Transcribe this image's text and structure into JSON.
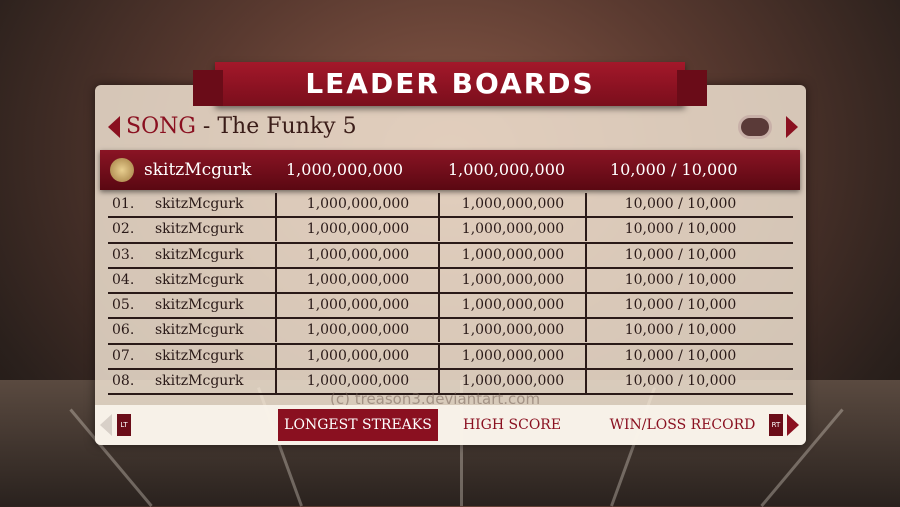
{
  "title": "LEADER BOARDS",
  "song": {
    "prefix": "SONG",
    "title": " - The Funky 5"
  },
  "highlight": {
    "name": "skitzMcgurk",
    "col1": "1,000,000,000",
    "col2": "1,000,000,000",
    "col3": "10,000 / 10,000"
  },
  "rows": [
    {
      "rank": "01.",
      "name": "skitzMcgurk",
      "col1": "1,000,000,000",
      "col2": "1,000,000,000",
      "col3": "10,000 / 10,000"
    },
    {
      "rank": "02.",
      "name": "skitzMcgurk",
      "col1": "1,000,000,000",
      "col2": "1,000,000,000",
      "col3": "10,000 / 10,000"
    },
    {
      "rank": "03.",
      "name": "skitzMcgurk",
      "col1": "1,000,000,000",
      "col2": "1,000,000,000",
      "col3": "10,000 / 10,000"
    },
    {
      "rank": "04.",
      "name": "skitzMcgurk",
      "col1": "1,000,000,000",
      "col2": "1,000,000,000",
      "col3": "10,000 / 10,000"
    },
    {
      "rank": "05.",
      "name": "skitzMcgurk",
      "col1": "1,000,000,000",
      "col2": "1,000,000,000",
      "col3": "10,000 / 10,000"
    },
    {
      "rank": "06.",
      "name": "skitzMcgurk",
      "col1": "1,000,000,000",
      "col2": "1,000,000,000",
      "col3": "10,000 / 10,000"
    },
    {
      "rank": "07.",
      "name": "skitzMcgurk",
      "col1": "1,000,000,000",
      "col2": "1,000,000,000",
      "col3": "10,000 / 10,000"
    },
    {
      "rank": "08.",
      "name": "skitzMcgurk",
      "col1": "1,000,000,000",
      "col2": "1,000,000,000",
      "col3": "10,000 / 10,000"
    }
  ],
  "tabs": [
    {
      "label": "LONGEST STREAKS",
      "active": true
    },
    {
      "label": "HIGH SCORE",
      "active": false
    },
    {
      "label": "WIN/LOSS RECORD",
      "active": false
    }
  ],
  "buttons": {
    "left": "LT",
    "right": "RT"
  },
  "watermark": "(c) treason3.deviantart.com",
  "colors": {
    "accent": "#8a1020",
    "panel": "#f5e8d7"
  }
}
